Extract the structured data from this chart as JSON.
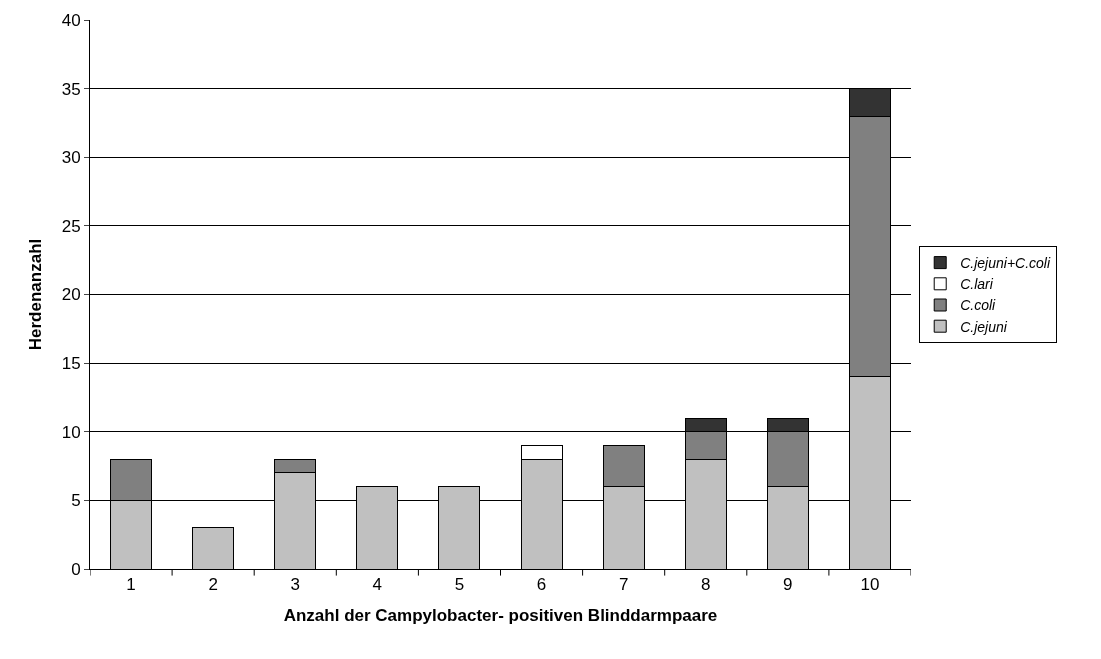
{
  "chart_data": {
    "type": "bar",
    "stacked": true,
    "xlabel": "Anzahl der Campylobacter- positiven Blinddarmpaare",
    "ylabel": "Herdenanzahl",
    "categories": [
      "1",
      "2",
      "3",
      "4",
      "5",
      "6",
      "7",
      "8",
      "9",
      "10"
    ],
    "series": [
      {
        "name": "C.jejuni",
        "color": "#c0c0c0",
        "values": [
          5,
          3,
          7,
          6,
          6,
          8,
          6,
          8,
          6,
          14
        ]
      },
      {
        "name": "C.coli",
        "color": "#808080",
        "values": [
          3,
          null,
          1,
          null,
          null,
          null,
          3,
          2,
          4,
          19
        ]
      },
      {
        "name": "C.lari",
        "color": "#ffffff",
        "values": [
          null,
          null,
          null,
          null,
          null,
          1,
          null,
          null,
          null,
          null
        ]
      },
      {
        "name": "C.jejuni+C.coli",
        "color": "#333333",
        "values": [
          null,
          null,
          null,
          null,
          null,
          null,
          null,
          1,
          1,
          2
        ]
      }
    ],
    "ylim": [
      0,
      40
    ],
    "yticks": [
      0,
      5,
      10,
      15,
      20,
      25,
      30,
      35,
      40
    ],
    "grid": "y",
    "legend": "right"
  }
}
